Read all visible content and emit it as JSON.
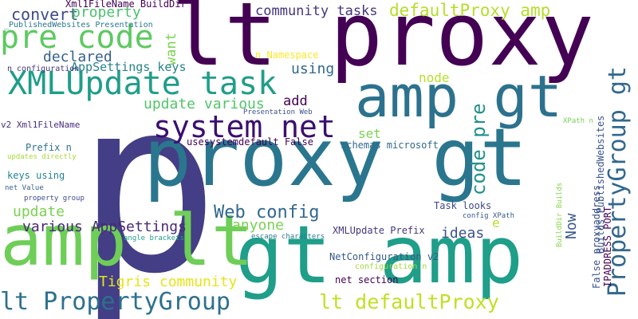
{
  "words": [
    {
      "text": "p",
      "color": "#433e85"
    },
    {
      "text": "lt proxy",
      "color": "#440154"
    },
    {
      "text": "proxy gt",
      "color": "#2a768e"
    },
    {
      "text": "gt amp",
      "color": "#1f9e89"
    },
    {
      "text": "amp lt",
      "color": "#6ece58"
    },
    {
      "text": "amp gt",
      "color": "#2c728e"
    },
    {
      "text": "pre code",
      "color": "#5ec962"
    },
    {
      "text": "XMLUpdate task",
      "color": "#1f9e89"
    },
    {
      "text": "system net",
      "color": "#3b0f70"
    },
    {
      "text": "PropertyGroup gt",
      "color": "#31688e"
    },
    {
      "text": "Web config",
      "color": "#31688e"
    },
    {
      "text": "lt PropertyGroup",
      "color": "#2d708e"
    },
    {
      "text": "lt defaultProxy",
      "color": "#c2df23"
    },
    {
      "text": "defaultProxy amp",
      "color": "#b5de2b"
    },
    {
      "text": "community tasks",
      "color": "#46337e"
    },
    {
      "text": "code pre",
      "color": "#21918c"
    },
    {
      "text": "convert",
      "color": "#3e4989"
    },
    {
      "text": "property",
      "color": "#4ac16d"
    },
    {
      "text": "declared",
      "color": "#35608d"
    },
    {
      "text": "update various",
      "color": "#52c569"
    },
    {
      "text": "using",
      "color": "#31688e"
    },
    {
      "text": "want",
      "color": "#7ad151"
    },
    {
      "text": "Tigris community",
      "color": "#e7e419"
    },
    {
      "text": "various AppSettings",
      "color": "#482878"
    },
    {
      "text": "update",
      "color": "#7ad151"
    },
    {
      "text": "anyone",
      "color": "#7ad151"
    },
    {
      "text": "ideas",
      "color": "#3b528b"
    },
    {
      "text": "add",
      "color": "#440154"
    },
    {
      "text": "node",
      "color": "#b5de2b"
    },
    {
      "text": "set",
      "color": "#7ad151"
    },
    {
      "text": "Now",
      "color": "#38588c"
    },
    {
      "text": "AppSettings keys",
      "color": "#26828e"
    },
    {
      "text": "Xml1FileName BuildDir",
      "color": "#440154"
    },
    {
      "text": "_PublishedWebsites Presentation",
      "color": "#2a768e"
    },
    {
      "text": "n configuration",
      "color": "#46337e"
    },
    {
      "text": "n Namespace",
      "color": "#fde725"
    },
    {
      "text": "Presentation Web",
      "color": "#3b528b"
    },
    {
      "text": "usesystemdefault False",
      "color": "#440154"
    },
    {
      "text": "schemas microsoft",
      "color": "#31688e"
    },
    {
      "text": "v2 Xml1FileName",
      "color": "#472d7b"
    },
    {
      "text": "Prefix n",
      "color": "#2c728e"
    },
    {
      "text": "updates directly",
      "color": "#a5db36"
    },
    {
      "text": "keys using",
      "color": "#25848e"
    },
    {
      "text": "net Value",
      "color": "#355f8d"
    },
    {
      "text": "property group",
      "color": "#3e4989"
    },
    {
      "text": "Task looks",
      "color": "#3e4989"
    },
    {
      "text": "config XPath",
      "color": "#38588c"
    },
    {
      "text": "XMLUpdate Prefix",
      "color": "#453781"
    },
    {
      "text": "NetConfiguration v2",
      "color": "#38588c"
    },
    {
      "text": "configuration n",
      "color": "#a0da39"
    },
    {
      "text": "net section",
      "color": "#440154"
    },
    {
      "text": "angle brackets",
      "color": "#1fa187"
    },
    {
      "text": "escape characters",
      "color": "#2a788e"
    },
    {
      "text": "BuildDir Builds",
      "color": "#86d549"
    },
    {
      "text": "IPADDRESS PORT",
      "color": "#440154"
    },
    {
      "text": "False proxyaddress",
      "color": "#3b528b"
    },
    {
      "text": "Builds_PublishedWebsites",
      "color": "#39568c"
    },
    {
      "text": "XPath n",
      "color": "#75d054"
    },
    {
      "text": "e",
      "color": "#b5de2b"
    }
  ]
}
